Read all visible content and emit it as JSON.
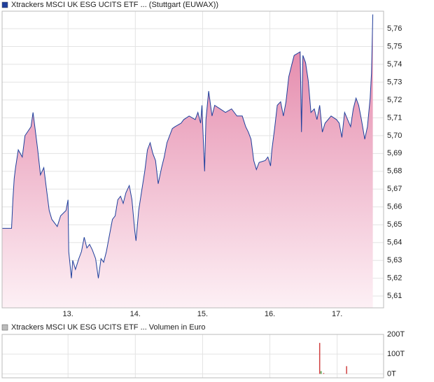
{
  "chart_data": [
    {
      "type": "area",
      "title": "Xtrackers MSCI UK ESG UCITS ETF ... (Stuttgart (EUWAX))",
      "legend_color": "#1f3f9c",
      "series": [
        {
          "name": "Xtrackers MSCI UK ESG UCITS ETF ...",
          "color": "#1f3f9c",
          "x": [
            12.02,
            12.16,
            12.18,
            12.2,
            12.22,
            12.26,
            12.32,
            12.36,
            12.45,
            12.48,
            12.51,
            12.55,
            12.59,
            12.64,
            12.68,
            12.72,
            12.76,
            12.84,
            12.89,
            12.97,
            13.0,
            13.01,
            13.05,
            13.07,
            13.11,
            13.16,
            13.2,
            13.24,
            13.28,
            13.32,
            13.36,
            13.41,
            13.45,
            13.49,
            13.53,
            13.57,
            13.61,
            13.66,
            13.7,
            13.74,
            13.78,
            13.82,
            13.86,
            13.91,
            13.95,
            13.99,
            14.01,
            14.05,
            14.09,
            14.14,
            14.18,
            14.22,
            14.26,
            14.3,
            14.34,
            14.39,
            14.43,
            14.47,
            14.55,
            14.59,
            14.68,
            14.72,
            14.8,
            14.89,
            14.93,
            14.97,
            14.99,
            15.01,
            15.03,
            15.05,
            15.09,
            15.14,
            15.18,
            15.26,
            15.34,
            15.43,
            15.51,
            15.59,
            15.64,
            15.68,
            15.72,
            15.76,
            15.8,
            15.84,
            15.93,
            15.97,
            16.01,
            16.03,
            16.07,
            16.11,
            16.16,
            16.2,
            16.24,
            16.28,
            16.32,
            16.36,
            16.45,
            16.47,
            16.49,
            16.53,
            16.57,
            16.61,
            16.66,
            16.7,
            16.74,
            16.78,
            16.82,
            16.91,
            16.99,
            17.03,
            17.07,
            17.11,
            17.2,
            17.24,
            17.28,
            17.32,
            17.36,
            17.41,
            17.45,
            17.49,
            17.51,
            17.53
          ],
          "values": [
            5.648,
            5.648,
            5.664,
            5.676,
            5.682,
            5.692,
            5.688,
            5.7,
            5.705,
            5.713,
            5.704,
            5.692,
            5.678,
            5.682,
            5.67,
            5.658,
            5.653,
            5.649,
            5.655,
            5.658,
            5.664,
            5.635,
            5.62,
            5.63,
            5.625,
            5.631,
            5.635,
            5.643,
            5.637,
            5.639,
            5.636,
            5.631,
            5.62,
            5.631,
            5.629,
            5.635,
            5.643,
            5.653,
            5.655,
            5.664,
            5.666,
            5.662,
            5.668,
            5.672,
            5.664,
            5.647,
            5.641,
            5.658,
            5.668,
            5.68,
            5.692,
            5.696,
            5.69,
            5.686,
            5.673,
            5.682,
            5.688,
            5.696,
            5.704,
            5.705,
            5.707,
            5.709,
            5.711,
            5.709,
            5.713,
            5.707,
            5.717,
            5.698,
            5.68,
            5.709,
            5.725,
            5.711,
            5.717,
            5.715,
            5.713,
            5.715,
            5.711,
            5.711,
            5.705,
            5.702,
            5.698,
            5.686,
            5.681,
            5.685,
            5.686,
            5.688,
            5.683,
            5.692,
            5.704,
            5.717,
            5.719,
            5.711,
            5.719,
            5.733,
            5.739,
            5.745,
            5.747,
            5.702,
            5.745,
            5.741,
            5.731,
            5.713,
            5.715,
            5.709,
            5.717,
            5.702,
            5.707,
            5.711,
            5.709,
            5.707,
            5.699,
            5.713,
            5.705,
            5.715,
            5.721,
            5.717,
            5.709,
            5.698,
            5.705,
            5.721,
            5.735,
            5.768
          ]
        }
      ],
      "fill_top": "#e27fa4",
      "fill_bottom": "#fdf0f5",
      "xlim": [
        12.02,
        17.69
      ],
      "xticks": [
        {
          "value": 13,
          "label": "13."
        },
        {
          "value": 14,
          "label": "14."
        },
        {
          "value": 15,
          "label": "15."
        },
        {
          "value": 16,
          "label": "16."
        },
        {
          "value": 17,
          "label": "17."
        }
      ],
      "ylim": [
        5.6034,
        5.7698
      ],
      "yticks": [
        {
          "value": 5.61,
          "label": "5,61"
        },
        {
          "value": 5.62,
          "label": "5,62"
        },
        {
          "value": 5.63,
          "label": "5,63"
        },
        {
          "value": 5.64,
          "label": "5,64"
        },
        {
          "value": 5.65,
          "label": "5,65"
        },
        {
          "value": 5.66,
          "label": "5,66"
        },
        {
          "value": 5.67,
          "label": "5,67"
        },
        {
          "value": 5.68,
          "label": "5,68"
        },
        {
          "value": 5.69,
          "label": "5,69"
        },
        {
          "value": 5.7,
          "label": "5,70"
        },
        {
          "value": 5.71,
          "label": "5,71"
        },
        {
          "value": 5.72,
          "label": "5,72"
        },
        {
          "value": 5.73,
          "label": "5,73"
        },
        {
          "value": 5.74,
          "label": "5,74"
        },
        {
          "value": 5.75,
          "label": "5,75"
        },
        {
          "value": 5.76,
          "label": "5,76"
        }
      ],
      "grid": true
    },
    {
      "type": "bar",
      "title": "Xtrackers MSCI UK ESG UCITS ETF ... Volumen in Euro",
      "legend_color": "#bbbbbb",
      "x": [
        16.74,
        16.76,
        16.8,
        17.14
      ],
      "values": [
        157,
        14,
        4,
        39
      ],
      "colors": [
        "#d04040",
        "#40a040",
        "#d04040",
        "#d04040"
      ],
      "xlim": [
        12.02,
        17.69
      ],
      "xticks": [
        13,
        14,
        15,
        16,
        17
      ],
      "ylim": [
        -20,
        200
      ],
      "yticks": [
        {
          "value": 0,
          "label": "0T"
        },
        {
          "value": 100,
          "label": "100T"
        },
        {
          "value": 200,
          "label": "200T"
        }
      ],
      "grid": true
    }
  ]
}
